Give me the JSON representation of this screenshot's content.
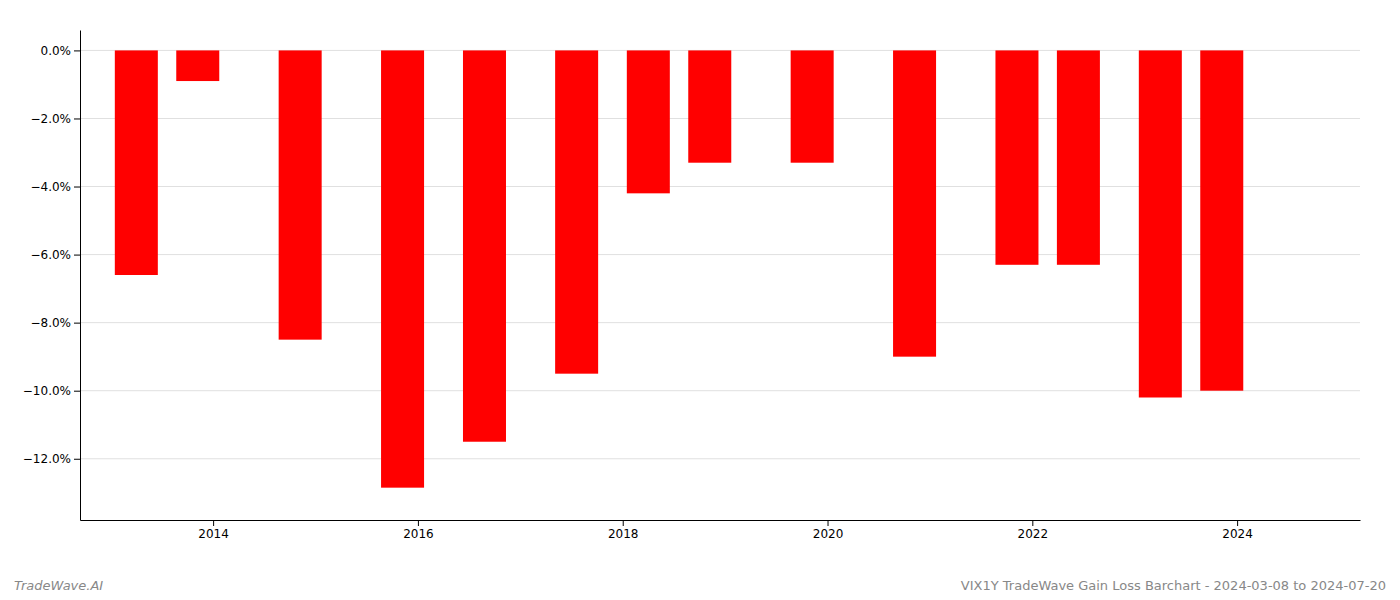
{
  "chart_data": {
    "type": "bar",
    "x": [
      2013.25,
      2013.85,
      2014.85,
      2015.85,
      2016.65,
      2017.55,
      2018.25,
      2018.85,
      2019.85,
      2020.85,
      2021.85,
      2022.45,
      2023.25,
      2023.85
    ],
    "values": [
      -6.6,
      -0.9,
      -8.5,
      -12.85,
      -11.5,
      -9.5,
      -4.2,
      -3.3,
      -3.3,
      -9.0,
      -6.3,
      -6.3,
      -10.2,
      -10.0
    ],
    "color": "#ff0000",
    "xlim": [
      2012.7,
      2025.2
    ],
    "xticks": [
      2014,
      2016,
      2018,
      2020,
      2022,
      2024
    ],
    "ylim": [
      -13.8,
      0.6
    ],
    "yticks": [
      {
        "value": 0.0,
        "label": "0.0%"
      },
      {
        "value": -2.0,
        "label": "−2.0%"
      },
      {
        "value": -4.0,
        "label": "−4.0%"
      },
      {
        "value": -6.0,
        "label": "−6.0%"
      },
      {
        "value": -8.0,
        "label": "−8.0%"
      },
      {
        "value": -10.0,
        "label": "−10.0%"
      },
      {
        "value": -12.0,
        "label": "−12.0%"
      }
    ],
    "grid": true,
    "annotations": [
      "TradeWave.AI",
      "VIX1Y TradeWave Gain Loss Barchart - 2024-03-08 to 2024-07-20"
    ]
  }
}
